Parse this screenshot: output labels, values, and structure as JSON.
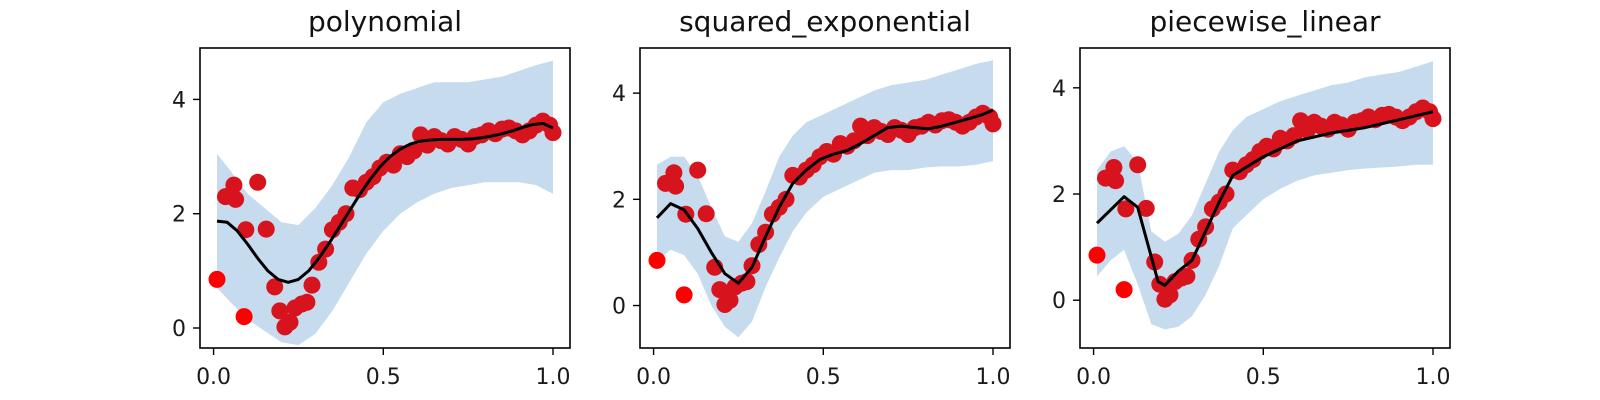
{
  "figure": {
    "panel_count": 3
  },
  "colors": {
    "band": "#c6dbed",
    "line": "#000000",
    "points": "#d7141e",
    "points_outlier": "#ff0000"
  },
  "chart_data": [
    {
      "type": "line",
      "title": "polynomial",
      "xlim": [
        -0.04,
        1.05
      ],
      "ylim": [
        -0.35,
        4.9
      ],
      "xticks": [
        "0.0",
        "0.5",
        "1.0"
      ],
      "yticks": [
        "0",
        "2",
        "4"
      ],
      "xtick_values": [
        0.0,
        0.5,
        1.0
      ],
      "ytick_values": [
        0,
        2,
        4
      ],
      "grid": false,
      "series": [
        {
          "kind": "band",
          "x": [
            0.01,
            0.05,
            0.1,
            0.15,
            0.2,
            0.25,
            0.3,
            0.35,
            0.4,
            0.45,
            0.5,
            0.55,
            0.6,
            0.65,
            0.7,
            0.75,
            0.8,
            0.85,
            0.9,
            0.95,
            1.0
          ],
          "lower": [
            0.7,
            0.45,
            0.15,
            -0.05,
            -0.25,
            -0.3,
            -0.1,
            0.3,
            0.8,
            1.3,
            1.7,
            2.0,
            2.2,
            2.35,
            2.45,
            2.5,
            2.55,
            2.55,
            2.55,
            2.5,
            2.35
          ],
          "upper": [
            3.05,
            2.75,
            2.35,
            2.1,
            1.85,
            1.8,
            2.1,
            2.5,
            3.0,
            3.6,
            3.95,
            4.1,
            4.2,
            4.3,
            4.3,
            4.3,
            4.35,
            4.4,
            4.5,
            4.6,
            4.68
          ]
        },
        {
          "kind": "line",
          "x": [
            0.01,
            0.04,
            0.07,
            0.1,
            0.13,
            0.16,
            0.19,
            0.22,
            0.25,
            0.28,
            0.31,
            0.34,
            0.37,
            0.4,
            0.43,
            0.46,
            0.49,
            0.52,
            0.55,
            0.58,
            0.61,
            0.64,
            0.67,
            0.7,
            0.73,
            0.76,
            0.79,
            0.82,
            0.85,
            0.88,
            0.91,
            0.94,
            0.97,
            1.0
          ],
          "y": [
            1.87,
            1.85,
            1.7,
            1.47,
            1.22,
            1.0,
            0.85,
            0.8,
            0.85,
            1.0,
            1.22,
            1.48,
            1.76,
            2.05,
            2.33,
            2.59,
            2.82,
            3.0,
            3.13,
            3.22,
            3.27,
            3.29,
            3.3,
            3.3,
            3.3,
            3.31,
            3.33,
            3.36,
            3.4,
            3.45,
            3.51,
            3.56,
            3.58,
            3.5
          ]
        },
        {
          "kind": "points",
          "x": [
            0.01,
            0.035,
            0.065,
            0.095,
            0.13,
            0.155,
            0.06,
            0.09,
            0.18,
            0.195,
            0.21,
            0.225,
            0.24,
            0.26,
            0.275,
            0.29,
            0.31,
            0.33,
            0.35,
            0.37,
            0.39,
            0.41,
            0.43,
            0.45,
            0.47,
            0.49,
            0.51,
            0.53,
            0.55,
            0.57,
            0.59,
            0.61,
            0.63,
            0.65,
            0.67,
            0.69,
            0.71,
            0.73,
            0.75,
            0.77,
            0.79,
            0.81,
            0.83,
            0.85,
            0.87,
            0.89,
            0.91,
            0.93,
            0.95,
            0.97,
            0.99,
            1.0
          ],
          "y": [
            0.85,
            2.3,
            2.25,
            1.72,
            2.55,
            1.73,
            2.5,
            0.2,
            0.72,
            0.3,
            0.02,
            0.1,
            0.35,
            0.42,
            0.45,
            0.75,
            1.15,
            1.38,
            1.72,
            1.85,
            2.0,
            2.45,
            2.42,
            2.55,
            2.65,
            2.8,
            2.9,
            2.85,
            3.05,
            3.0,
            3.1,
            3.38,
            3.2,
            3.35,
            3.28,
            3.22,
            3.35,
            3.3,
            3.22,
            3.35,
            3.38,
            3.45,
            3.4,
            3.48,
            3.5,
            3.45,
            3.38,
            3.45,
            3.55,
            3.62,
            3.55,
            3.42
          ]
        }
      ]
    },
    {
      "type": "line",
      "title": "squared_exponential",
      "xlim": [
        -0.04,
        1.05
      ],
      "ylim": [
        -0.8,
        4.85
      ],
      "xticks": [
        "0.0",
        "0.5",
        "1.0"
      ],
      "yticks": [
        "0",
        "2",
        "4"
      ],
      "xtick_values": [
        0.0,
        0.5,
        1.0
      ],
      "ytick_values": [
        0,
        2,
        4
      ],
      "grid": false,
      "series": [
        {
          "kind": "band",
          "x": [
            0.01,
            0.05,
            0.09,
            0.13,
            0.17,
            0.21,
            0.25,
            0.29,
            0.33,
            0.37,
            0.41,
            0.45,
            0.5,
            0.55,
            0.6,
            0.65,
            0.7,
            0.75,
            0.8,
            0.85,
            0.9,
            0.95,
            1.0
          ],
          "lower": [
            0.85,
            1.05,
            0.95,
            0.6,
            0.0,
            -0.4,
            -0.6,
            -0.3,
            0.35,
            0.9,
            1.4,
            1.75,
            2.05,
            2.2,
            2.35,
            2.5,
            2.55,
            2.55,
            2.6,
            2.62,
            2.62,
            2.65,
            2.72
          ],
          "upper": [
            2.65,
            2.8,
            2.8,
            2.45,
            1.85,
            1.3,
            1.2,
            1.55,
            2.15,
            2.8,
            3.2,
            3.45,
            3.6,
            3.75,
            3.9,
            4.05,
            4.15,
            4.2,
            4.25,
            4.35,
            4.45,
            4.55,
            4.62
          ]
        },
        {
          "kind": "line",
          "x": [
            0.01,
            0.05,
            0.09,
            0.13,
            0.17,
            0.21,
            0.25,
            0.29,
            0.33,
            0.37,
            0.41,
            0.45,
            0.49,
            0.53,
            0.57,
            0.61,
            0.65,
            0.69,
            0.73,
            0.77,
            0.81,
            0.85,
            0.89,
            0.93,
            0.97,
            1.0
          ],
          "y": [
            1.65,
            1.92,
            1.8,
            1.45,
            1.0,
            0.6,
            0.42,
            0.72,
            1.3,
            1.85,
            2.3,
            2.55,
            2.75,
            2.85,
            2.92,
            3.05,
            3.2,
            3.35,
            3.38,
            3.35,
            3.33,
            3.38,
            3.45,
            3.52,
            3.6,
            3.68
          ]
        },
        {
          "kind": "points",
          "x": [
            0.01,
            0.035,
            0.065,
            0.095,
            0.13,
            0.155,
            0.06,
            0.09,
            0.18,
            0.195,
            0.21,
            0.225,
            0.24,
            0.26,
            0.275,
            0.29,
            0.31,
            0.33,
            0.35,
            0.37,
            0.39,
            0.41,
            0.43,
            0.45,
            0.47,
            0.49,
            0.51,
            0.53,
            0.55,
            0.57,
            0.59,
            0.61,
            0.63,
            0.65,
            0.67,
            0.69,
            0.71,
            0.73,
            0.75,
            0.77,
            0.79,
            0.81,
            0.83,
            0.85,
            0.87,
            0.89,
            0.91,
            0.93,
            0.95,
            0.97,
            0.99,
            1.0
          ],
          "y": [
            0.85,
            2.3,
            2.25,
            1.72,
            2.55,
            1.73,
            2.5,
            0.2,
            0.72,
            0.3,
            0.02,
            0.1,
            0.35,
            0.42,
            0.45,
            0.75,
            1.15,
            1.38,
            1.72,
            1.85,
            2.0,
            2.45,
            2.42,
            2.55,
            2.65,
            2.8,
            2.9,
            2.85,
            3.05,
            3.0,
            3.1,
            3.38,
            3.2,
            3.35,
            3.28,
            3.22,
            3.35,
            3.3,
            3.22,
            3.35,
            3.38,
            3.45,
            3.4,
            3.48,
            3.5,
            3.45,
            3.38,
            3.45,
            3.55,
            3.62,
            3.55,
            3.42
          ]
        }
      ]
    },
    {
      "type": "line",
      "title": "piecewise_linear",
      "xlim": [
        -0.04,
        1.05
      ],
      "ylim": [
        -0.9,
        4.75
      ],
      "xticks": [
        "0.0",
        "0.5",
        "1.0"
      ],
      "yticks": [
        "0",
        "2",
        "4"
      ],
      "xtick_values": [
        0.0,
        0.5,
        1.0
      ],
      "ytick_values": [
        0,
        2,
        4
      ],
      "grid": false,
      "series": [
        {
          "kind": "band",
          "x": [
            0.01,
            0.05,
            0.09,
            0.13,
            0.17,
            0.21,
            0.25,
            0.29,
            0.33,
            0.37,
            0.41,
            0.45,
            0.5,
            0.55,
            0.6,
            0.65,
            0.7,
            0.75,
            0.8,
            0.85,
            0.9,
            0.95,
            1.0
          ],
          "lower": [
            0.45,
            0.75,
            0.95,
            0.3,
            -0.45,
            -0.55,
            -0.5,
            -0.3,
            0.1,
            0.65,
            1.35,
            1.6,
            1.9,
            2.1,
            2.25,
            2.35,
            2.4,
            2.45,
            2.48,
            2.5,
            2.52,
            2.55,
            2.55
          ],
          "upper": [
            2.45,
            2.8,
            2.9,
            2.6,
            1.3,
            1.1,
            1.25,
            1.6,
            2.2,
            2.8,
            3.2,
            3.45,
            3.6,
            3.75,
            3.85,
            3.95,
            4.05,
            4.1,
            4.2,
            4.25,
            4.3,
            4.4,
            4.5
          ]
        },
        {
          "kind": "line",
          "x": [
            0.01,
            0.09,
            0.13,
            0.19,
            0.21,
            0.25,
            0.29,
            0.33,
            0.37,
            0.41,
            0.5,
            0.6,
            0.7,
            0.8,
            0.9,
            1.0
          ],
          "y": [
            1.45,
            1.95,
            1.75,
            0.35,
            0.28,
            0.55,
            0.75,
            1.3,
            1.85,
            2.35,
            2.7,
            3.0,
            3.15,
            3.25,
            3.4,
            3.55
          ]
        },
        {
          "kind": "points",
          "x": [
            0.01,
            0.035,
            0.065,
            0.095,
            0.13,
            0.155,
            0.06,
            0.09,
            0.18,
            0.195,
            0.21,
            0.225,
            0.24,
            0.26,
            0.275,
            0.29,
            0.31,
            0.33,
            0.35,
            0.37,
            0.39,
            0.41,
            0.43,
            0.45,
            0.47,
            0.49,
            0.51,
            0.53,
            0.55,
            0.57,
            0.59,
            0.61,
            0.63,
            0.65,
            0.67,
            0.69,
            0.71,
            0.73,
            0.75,
            0.77,
            0.79,
            0.81,
            0.83,
            0.85,
            0.87,
            0.89,
            0.91,
            0.93,
            0.95,
            0.97,
            0.99,
            1.0
          ],
          "y": [
            0.85,
            2.3,
            2.25,
            1.72,
            2.55,
            1.73,
            2.5,
            0.2,
            0.72,
            0.3,
            0.02,
            0.1,
            0.35,
            0.42,
            0.45,
            0.75,
            1.15,
            1.38,
            1.72,
            1.85,
            2.0,
            2.45,
            2.42,
            2.55,
            2.65,
            2.8,
            2.9,
            2.85,
            3.05,
            3.0,
            3.1,
            3.38,
            3.2,
            3.35,
            3.28,
            3.22,
            3.35,
            3.3,
            3.22,
            3.35,
            3.38,
            3.45,
            3.4,
            3.48,
            3.5,
            3.45,
            3.38,
            3.45,
            3.55,
            3.62,
            3.55,
            3.42
          ]
        }
      ]
    }
  ]
}
